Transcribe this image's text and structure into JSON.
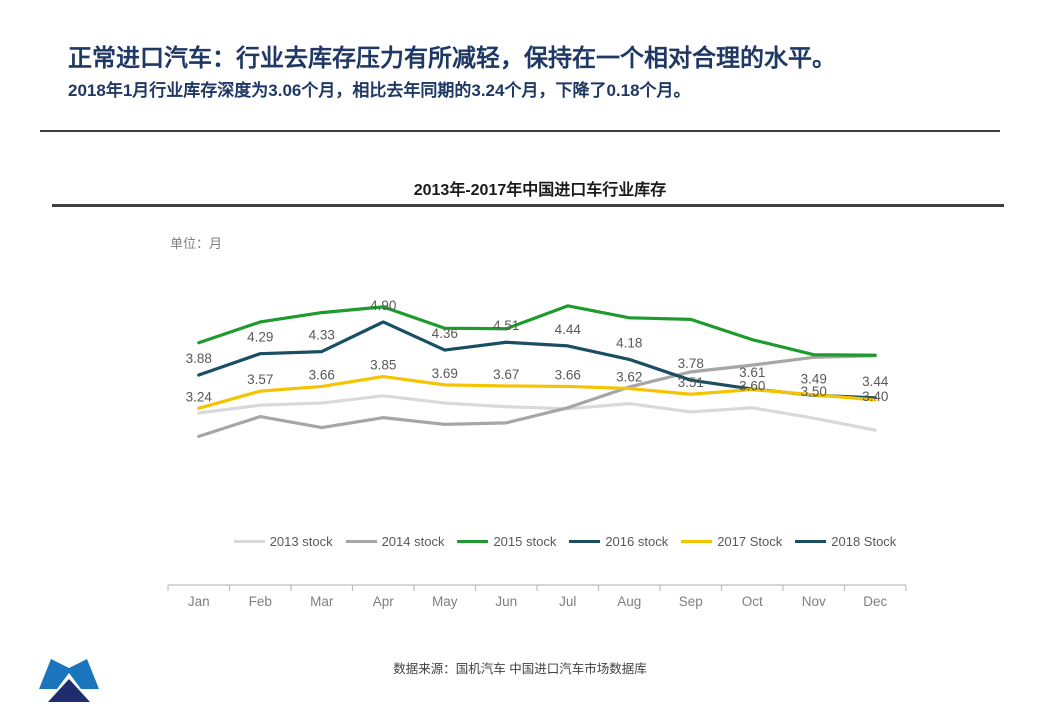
{
  "header": {
    "title": "正常进口汽车：行业去库存压力有所减轻，保持在一个相对合理的水平。",
    "subtitle": "2018年1月行业库存深度为3.06个月，相比去年同期的3.24个月，下降了0.18个月。"
  },
  "footer": {
    "source": "数据来源：国机汽车  中国进口汽车市场数据库"
  },
  "logo": {
    "colors": {
      "light_blue": "#1B75BC",
      "dark_navy": "#1F2D6E"
    }
  },
  "chart_data": {
    "type": "line",
    "title": "2013年-2017年中国进口车行业库存",
    "unit": "单位：月",
    "xlabel": "",
    "ylabel": "单位：月",
    "categories": [
      "Jan",
      "Feb",
      "Mar",
      "Apr",
      "May",
      "Jun",
      "Jul",
      "Aug",
      "Sep",
      "Oct",
      "Nov",
      "Dec"
    ],
    "series": [
      {
        "name": "2013 stock",
        "color": "#D9D9D9",
        "data_labels": false,
        "values": [
          3.15,
          3.3,
          3.34,
          3.48,
          3.34,
          3.27,
          3.23,
          3.33,
          3.17,
          3.25,
          3.05,
          2.82
        ]
      },
      {
        "name": "2014 stock",
        "color": "#A6A6A6",
        "data_labels": false,
        "values": [
          2.7,
          3.08,
          2.87,
          3.06,
          2.93,
          2.96,
          3.25,
          3.65,
          3.94,
          4.07,
          4.22,
          4.25
        ]
      },
      {
        "name": "2015 stock",
        "color": "#1E9B2C",
        "data_labels": false,
        "values": [
          4.5,
          4.9,
          5.08,
          5.19,
          4.78,
          4.77,
          5.21,
          4.98,
          4.95,
          4.56,
          4.27,
          4.26
        ]
      },
      {
        "name": "2016 stock",
        "color": "#1A4E63",
        "data_labels": true,
        "values": [
          3.88,
          4.29,
          4.33,
          4.9,
          4.36,
          4.51,
          4.44,
          4.18,
          3.78,
          3.61,
          3.49,
          3.44
        ]
      },
      {
        "name": "2017 Stock",
        "color": "#F5C400",
        "data_labels": true,
        "values": [
          3.24,
          3.57,
          3.66,
          3.85,
          3.69,
          3.67,
          3.66,
          3.62,
          3.51,
          3.6,
          3.5,
          3.4
        ]
      },
      {
        "name": "2018 Stock",
        "color": "#1A4E63",
        "data_labels": false,
        "values": [
          3.06,
          null,
          null,
          null,
          null,
          null,
          null,
          null,
          null,
          null,
          null,
          null
        ]
      }
    ],
    "ylim": [
      0,
      6
    ],
    "grid": false,
    "legend_position": "bottom-inside",
    "axis_color": "#BFBFBF",
    "label_color": "#595959",
    "tick_label_color": "#7F7F7F"
  }
}
